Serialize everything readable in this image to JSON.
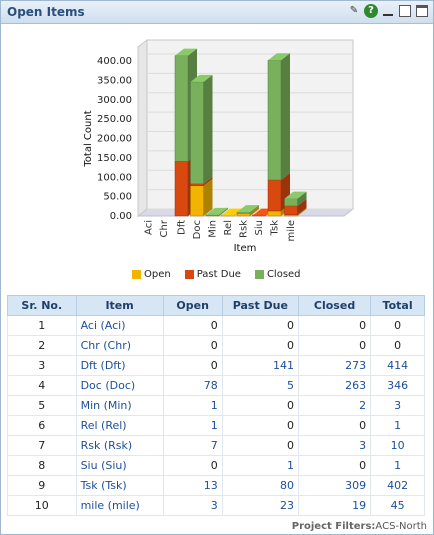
{
  "window": {
    "title": "Open Items",
    "icons": [
      "edit-icon",
      "help-icon",
      "minimize-icon",
      "restore-icon",
      "maximize-icon"
    ]
  },
  "chart_data": {
    "type": "bar",
    "stacked": true,
    "three_d": true,
    "categories": [
      "Aci",
      "Chr",
      "Dft",
      "Doc",
      "Min",
      "Rel",
      "Rsk",
      "Siu",
      "Tsk",
      "mile"
    ],
    "series": [
      {
        "name": "Open",
        "color": "#f2b400",
        "values": [
          0,
          0,
          0,
          78,
          1,
          1,
          7,
          0,
          13,
          3
        ]
      },
      {
        "name": "Past Due",
        "color": "#d9480f",
        "values": [
          0,
          0,
          141,
          5,
          0,
          0,
          0,
          1,
          80,
          23
        ]
      },
      {
        "name": "Closed",
        "color": "#79b05c",
        "values": [
          0,
          0,
          273,
          263,
          2,
          0,
          3,
          0,
          309,
          19
        ]
      }
    ],
    "xlabel": "Item",
    "ylabel": "Total Count",
    "ylim": [
      0,
      400
    ],
    "yticks": [
      "0.00",
      "50.00",
      "100.00",
      "150.00",
      "200.00",
      "250.00",
      "300.00",
      "350.00",
      "400.00"
    ],
    "legend_position": "bottom"
  },
  "table": {
    "headers": [
      "Sr. No.",
      "Item",
      "Open",
      "Past Due",
      "Closed",
      "Total"
    ],
    "rows": [
      [
        "1",
        "Aci (Aci)",
        "0",
        "0",
        "0",
        "0"
      ],
      [
        "2",
        "Chr (Chr)",
        "0",
        "0",
        "0",
        "0"
      ],
      [
        "3",
        "Dft (Dft)",
        "0",
        "141",
        "273",
        "414"
      ],
      [
        "4",
        "Doc (Doc)",
        "78",
        "5",
        "263",
        "346"
      ],
      [
        "5",
        "Min (Min)",
        "1",
        "0",
        "2",
        "3"
      ],
      [
        "6",
        "Rel (Rel)",
        "1",
        "0",
        "0",
        "1"
      ],
      [
        "7",
        "Rsk (Rsk)",
        "7",
        "0",
        "3",
        "10"
      ],
      [
        "8",
        "Siu (Siu)",
        "0",
        "1",
        "0",
        "1"
      ],
      [
        "9",
        "Tsk (Tsk)",
        "13",
        "80",
        "309",
        "402"
      ],
      [
        "10",
        "mile (mile)",
        "3",
        "23",
        "19",
        "45"
      ]
    ]
  },
  "footer": {
    "filters_label": "Project Filters:",
    "filters_value": "ACS-North"
  }
}
